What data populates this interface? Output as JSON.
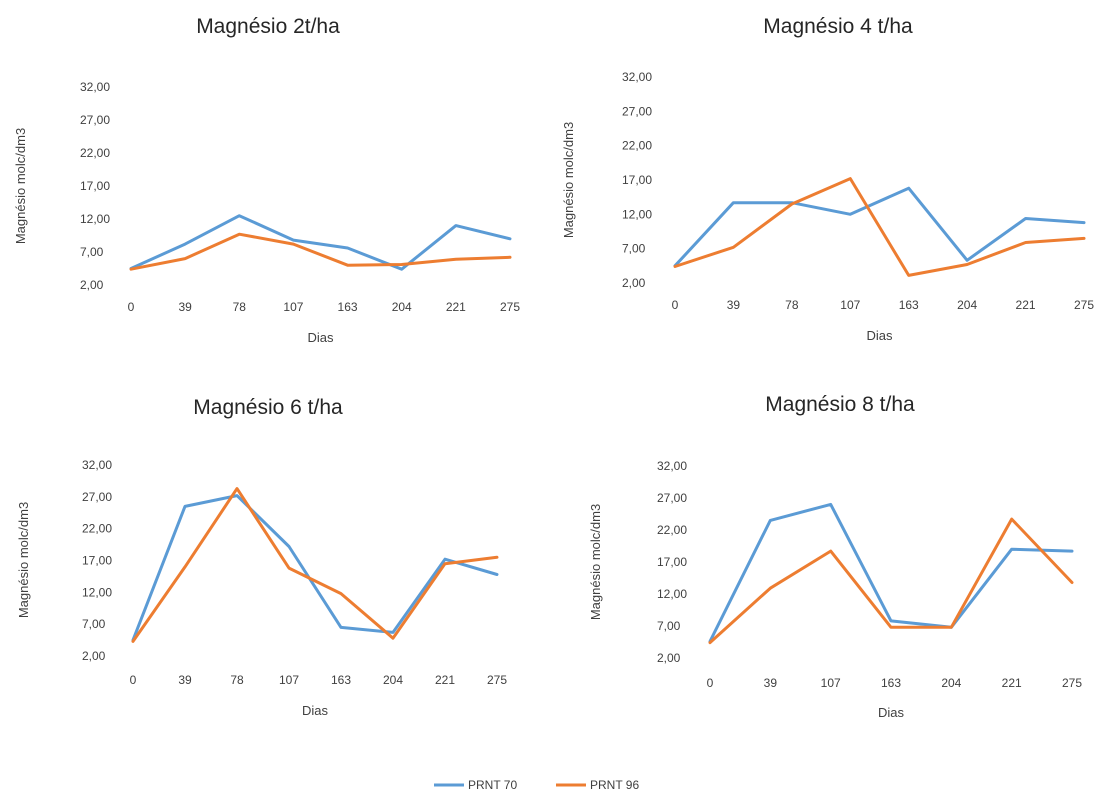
{
  "legend": [
    "PRNT 70",
    "PRNT 96"
  ],
  "colors": {
    "PRNT 70": "#5b9bd5",
    "PRNT 96": "#ed7d31"
  },
  "chart_data": [
    {
      "type": "line",
      "title": "Magnésio 2t/ha",
      "xlabel": "Dias",
      "ylabel": "Magnésio molc/dm3",
      "categories": [
        "0",
        "39",
        "78",
        "107",
        "163",
        "204",
        "221",
        "275"
      ],
      "yticks": [
        "2,00",
        "7,00",
        "12,00",
        "17,00",
        "22,00",
        "27,00",
        "32,00"
      ],
      "ylim": [
        2,
        32
      ],
      "series": [
        {
          "name": "PRNT 70",
          "values": [
            4.5,
            8.2,
            12.5,
            8.8,
            7.6,
            4.4,
            11.0,
            9.0
          ]
        },
        {
          "name": "PRNT 96",
          "values": [
            4.4,
            6.0,
            9.7,
            8.2,
            5.0,
            5.1,
            5.9,
            6.2
          ]
        }
      ]
    },
    {
      "type": "line",
      "title": "Magnésio 4 t/ha",
      "xlabel": "Dias",
      "ylabel": "Magnésio molc/dm3",
      "categories": [
        "0",
        "39",
        "78",
        "107",
        "163",
        "204",
        "221",
        "275"
      ],
      "yticks": [
        "2,00",
        "7,00",
        "12,00",
        "17,00",
        "22,00",
        "27,00",
        "32,00"
      ],
      "ylim": [
        2,
        32
      ],
      "series": [
        {
          "name": "PRNT 70",
          "values": [
            4.5,
            13.7,
            13.7,
            12.0,
            15.8,
            5.3,
            11.4,
            10.8
          ]
        },
        {
          "name": "PRNT 96",
          "values": [
            4.4,
            7.2,
            13.5,
            17.2,
            3.1,
            4.7,
            7.9,
            8.5
          ]
        }
      ]
    },
    {
      "type": "line",
      "title": "Magnésio  6 t/ha",
      "xlabel": "Dias",
      "ylabel": "Magnésio molc/dm3",
      "categories": [
        "0",
        "39",
        "78",
        "107",
        "163",
        "204",
        "221",
        "275"
      ],
      "yticks": [
        "2,00",
        "7,00",
        "12,00",
        "17,00",
        "22,00",
        "27,00",
        "32,00"
      ],
      "ylim": [
        2,
        32
      ],
      "series": [
        {
          "name": "PRNT 70",
          "values": [
            4.5,
            25.5,
            27.2,
            19.2,
            6.5,
            5.7,
            17.2,
            14.8
          ]
        },
        {
          "name": "PRNT 96",
          "values": [
            4.3,
            16.0,
            28.3,
            15.8,
            11.8,
            4.8,
            16.5,
            17.5
          ]
        }
      ]
    },
    {
      "type": "line",
      "title": "Magnésio 8 t/ha",
      "xlabel": "Dias",
      "ylabel": "Magnésio molc/dm3",
      "categories": [
        "0",
        "39",
        "107",
        "163",
        "204",
        "221",
        "275"
      ],
      "yticks": [
        "2,00",
        "7,00",
        "12,00",
        "17,00",
        "22,00",
        "27,00",
        "32,00"
      ],
      "ylim": [
        2,
        32
      ],
      "series": [
        {
          "name": "PRNT 70",
          "values": [
            4.6,
            23.5,
            26.0,
            7.8,
            6.8,
            19.0,
            18.7
          ]
        },
        {
          "name": "PRNT 96",
          "values": [
            4.4,
            12.9,
            18.7,
            6.8,
            6.8,
            23.7,
            13.8
          ]
        }
      ]
    }
  ]
}
